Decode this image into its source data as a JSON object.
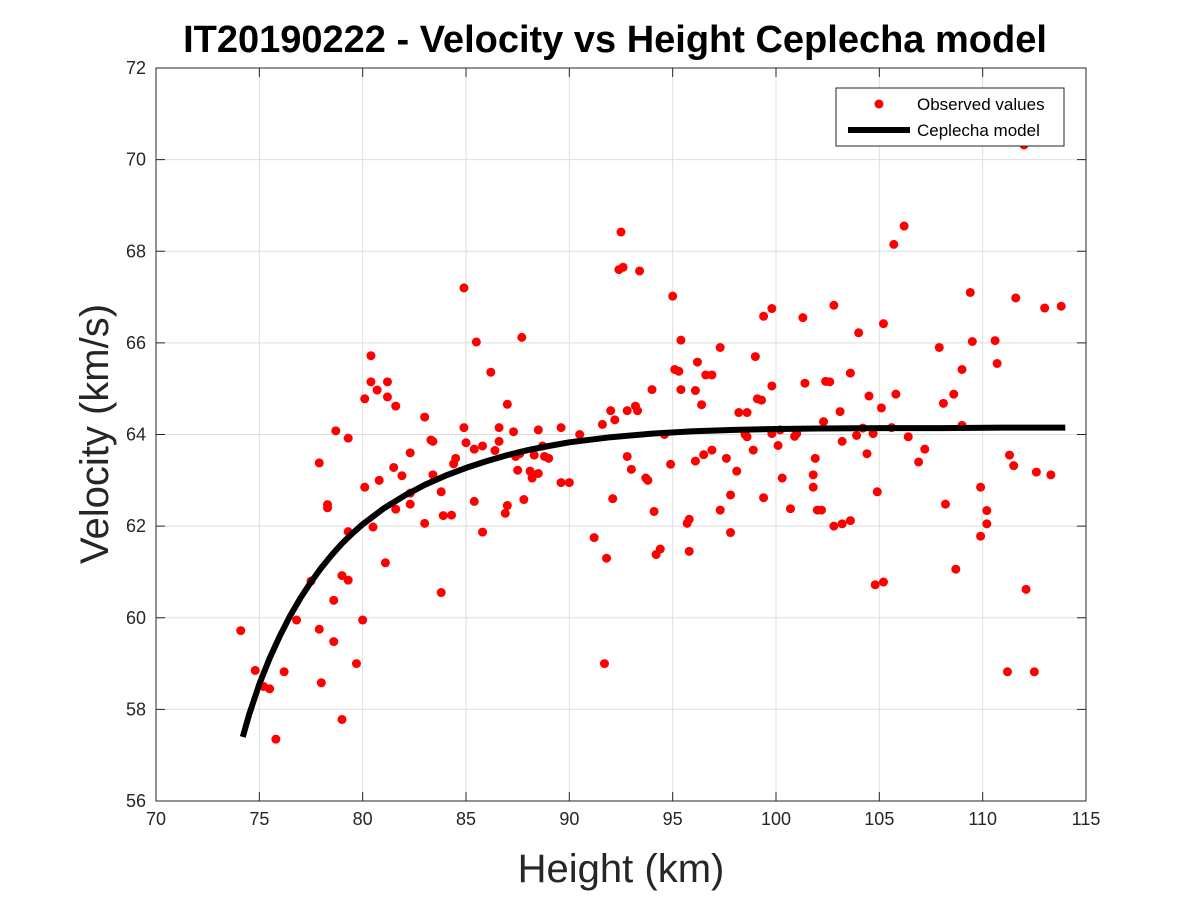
{
  "chart_data": {
    "type": "scatter",
    "title": "IT20190222 - Velocity vs Height Ceplecha model",
    "xlabel": "Height (km)",
    "ylabel": "Velocity (km/s)",
    "xlim": [
      70,
      115
    ],
    "ylim": [
      56,
      72
    ],
    "xticks": [
      "70",
      "75",
      "80",
      "85",
      "90",
      "95",
      "100",
      "105",
      "110",
      "115"
    ],
    "yticks": [
      "56",
      "58",
      "60",
      "62",
      "64",
      "66",
      "68",
      "70",
      "72"
    ],
    "grid": true,
    "legend_position": "top-right",
    "series": [
      {
        "name": "Observed values",
        "style": "markers",
        "color": "#ff0000",
        "points": [
          [
            74.1,
            59.72
          ],
          [
            74.8,
            58.85
          ],
          [
            75.2,
            58.5
          ],
          [
            75.5,
            58.45
          ],
          [
            75.8,
            57.35
          ],
          [
            76.2,
            58.82
          ],
          [
            76.8,
            59.95
          ],
          [
            77.5,
            60.8
          ],
          [
            77.9,
            63.38
          ],
          [
            77.9,
            59.75
          ],
          [
            78.0,
            58.58
          ],
          [
            78.3,
            62.47
          ],
          [
            78.3,
            62.4
          ],
          [
            78.6,
            60.38
          ],
          [
            78.6,
            59.48
          ],
          [
            78.7,
            64.08
          ],
          [
            79.0,
            57.78
          ],
          [
            79.0,
            60.92
          ],
          [
            79.3,
            60.82
          ],
          [
            79.3,
            61.88
          ],
          [
            79.3,
            63.92
          ],
          [
            79.7,
            59.0
          ],
          [
            80.0,
            59.95
          ],
          [
            80.1,
            62.85
          ],
          [
            80.1,
            64.78
          ],
          [
            80.4,
            65.72
          ],
          [
            80.4,
            65.15
          ],
          [
            80.5,
            61.98
          ],
          [
            80.7,
            64.97
          ],
          [
            80.8,
            63.0
          ],
          [
            81.1,
            61.2
          ],
          [
            81.2,
            64.82
          ],
          [
            81.2,
            65.15
          ],
          [
            81.5,
            63.28
          ],
          [
            81.6,
            64.62
          ],
          [
            81.6,
            62.37
          ],
          [
            81.9,
            63.1
          ],
          [
            82.3,
            62.72
          ],
          [
            82.3,
            62.48
          ],
          [
            82.3,
            63.6
          ],
          [
            83.0,
            62.06
          ],
          [
            83.0,
            64.38
          ],
          [
            83.3,
            63.88
          ],
          [
            83.4,
            63.85
          ],
          [
            83.4,
            63.12
          ],
          [
            83.8,
            62.75
          ],
          [
            83.8,
            60.55
          ],
          [
            83.9,
            62.23
          ],
          [
            84.3,
            62.24
          ],
          [
            84.4,
            63.36
          ],
          [
            84.5,
            63.48
          ],
          [
            84.9,
            67.2
          ],
          [
            84.9,
            64.15
          ],
          [
            85.0,
            63.82
          ],
          [
            85.4,
            62.54
          ],
          [
            85.4,
            63.68
          ],
          [
            85.5,
            66.02
          ],
          [
            85.8,
            63.75
          ],
          [
            85.8,
            61.87
          ],
          [
            86.2,
            65.36
          ],
          [
            86.4,
            63.65
          ],
          [
            86.6,
            63.85
          ],
          [
            86.6,
            64.15
          ],
          [
            86.9,
            62.28
          ],
          [
            87.0,
            62.45
          ],
          [
            87.0,
            64.66
          ],
          [
            87.3,
            64.06
          ],
          [
            87.4,
            63.52
          ],
          [
            87.5,
            63.22
          ],
          [
            87.6,
            63.58
          ],
          [
            87.7,
            66.12
          ],
          [
            87.8,
            62.58
          ],
          [
            88.1,
            63.2
          ],
          [
            88.2,
            63.05
          ],
          [
            88.3,
            63.55
          ],
          [
            88.5,
            64.1
          ],
          [
            88.5,
            63.15
          ],
          [
            88.7,
            63.75
          ],
          [
            88.8,
            63.52
          ],
          [
            89.0,
            63.48
          ],
          [
            89.6,
            62.95
          ],
          [
            89.6,
            64.15
          ],
          [
            90.0,
            62.95
          ],
          [
            90.5,
            64.0
          ],
          [
            91.2,
            61.75
          ],
          [
            91.6,
            64.22
          ],
          [
            91.7,
            59.0
          ],
          [
            91.8,
            61.3
          ],
          [
            92.0,
            64.52
          ],
          [
            92.1,
            62.6
          ],
          [
            92.2,
            64.32
          ],
          [
            92.4,
            67.6
          ],
          [
            92.5,
            68.42
          ],
          [
            92.6,
            67.65
          ],
          [
            92.8,
            63.52
          ],
          [
            92.8,
            64.52
          ],
          [
            93.0,
            63.24
          ],
          [
            93.2,
            64.62
          ],
          [
            93.3,
            64.52
          ],
          [
            93.4,
            67.57
          ],
          [
            93.7,
            63.05
          ],
          [
            93.8,
            63.0
          ],
          [
            94.0,
            64.98
          ],
          [
            94.1,
            62.32
          ],
          [
            94.2,
            61.38
          ],
          [
            94.4,
            61.5
          ],
          [
            94.6,
            64.0
          ],
          [
            94.9,
            63.35
          ],
          [
            95.0,
            67.02
          ],
          [
            95.1,
            65.42
          ],
          [
            95.3,
            65.38
          ],
          [
            95.4,
            66.06
          ],
          [
            95.4,
            64.98
          ],
          [
            95.7,
            62.06
          ],
          [
            95.8,
            62.15
          ],
          [
            95.8,
            61.45
          ],
          [
            96.1,
            64.96
          ],
          [
            96.1,
            63.42
          ],
          [
            96.2,
            65.58
          ],
          [
            96.4,
            64.65
          ],
          [
            96.5,
            63.56
          ],
          [
            96.6,
            65.3
          ],
          [
            96.9,
            63.66
          ],
          [
            96.9,
            65.3
          ],
          [
            97.3,
            65.9
          ],
          [
            97.3,
            62.35
          ],
          [
            97.6,
            63.48
          ],
          [
            97.8,
            62.68
          ],
          [
            97.8,
            61.86
          ],
          [
            98.1,
            63.2
          ],
          [
            98.2,
            64.48
          ],
          [
            98.5,
            64.0
          ],
          [
            98.6,
            64.48
          ],
          [
            98.6,
            63.95
          ],
          [
            98.9,
            63.66
          ],
          [
            99.0,
            65.7
          ],
          [
            99.1,
            64.78
          ],
          [
            99.3,
            64.75
          ],
          [
            99.4,
            62.62
          ],
          [
            99.4,
            66.58
          ],
          [
            99.8,
            65.06
          ],
          [
            99.8,
            66.75
          ],
          [
            99.8,
            64.02
          ],
          [
            100.2,
            64.1
          ],
          [
            100.1,
            63.76
          ],
          [
            100.3,
            63.05
          ],
          [
            100.7,
            62.38
          ],
          [
            100.9,
            63.96
          ],
          [
            101.0,
            64.02
          ],
          [
            101.3,
            66.55
          ],
          [
            101.4,
            65.12
          ],
          [
            101.8,
            62.85
          ],
          [
            101.8,
            63.12
          ],
          [
            101.9,
            63.48
          ],
          [
            102.0,
            62.35
          ],
          [
            102.2,
            62.35
          ],
          [
            102.3,
            64.28
          ],
          [
            102.4,
            65.16
          ],
          [
            102.6,
            65.15
          ],
          [
            102.8,
            66.82
          ],
          [
            102.8,
            62.0
          ],
          [
            103.1,
            64.5
          ],
          [
            103.2,
            62.05
          ],
          [
            103.2,
            63.85
          ],
          [
            103.6,
            65.34
          ],
          [
            103.6,
            62.12
          ],
          [
            103.9,
            63.98
          ],
          [
            104.0,
            66.22
          ],
          [
            104.2,
            64.14
          ],
          [
            104.4,
            63.58
          ],
          [
            104.5,
            64.84
          ],
          [
            104.7,
            64.02
          ],
          [
            104.8,
            60.72
          ],
          [
            104.9,
            62.75
          ],
          [
            105.1,
            64.58
          ],
          [
            105.2,
            60.78
          ],
          [
            105.2,
            66.42
          ],
          [
            105.6,
            64.15
          ],
          [
            105.7,
            68.15
          ],
          [
            105.8,
            64.88
          ],
          [
            106.2,
            68.55
          ],
          [
            106.4,
            63.95
          ],
          [
            106.9,
            63.4
          ],
          [
            107.2,
            63.68
          ],
          [
            107.9,
            65.9
          ],
          [
            108.1,
            64.68
          ],
          [
            108.2,
            62.48
          ],
          [
            108.6,
            64.88
          ],
          [
            108.7,
            61.06
          ],
          [
            109.0,
            64.2
          ],
          [
            109.0,
            65.42
          ],
          [
            109.4,
            67.1
          ],
          [
            109.5,
            66.03
          ],
          [
            109.9,
            62.85
          ],
          [
            109.9,
            61.78
          ],
          [
            110.2,
            62.34
          ],
          [
            110.2,
            62.05
          ],
          [
            110.6,
            66.05
          ],
          [
            110.7,
            65.55
          ],
          [
            111.2,
            58.82
          ],
          [
            111.3,
            63.55
          ],
          [
            111.5,
            63.32
          ],
          [
            111.6,
            66.98
          ],
          [
            112.0,
            70.32
          ],
          [
            112.1,
            60.62
          ],
          [
            112.5,
            58.82
          ],
          [
            112.6,
            63.18
          ],
          [
            113.0,
            66.76
          ],
          [
            113.3,
            63.12
          ],
          [
            113.8,
            66.8
          ]
        ]
      },
      {
        "name": "Ceplecha model",
        "style": "line",
        "color": "#000000",
        "x": [
          74.2,
          74.5,
          75,
          75.5,
          76,
          76.5,
          77,
          77.5,
          78,
          78.5,
          79,
          79.5,
          80,
          81,
          82,
          83,
          84,
          85,
          86,
          87,
          88,
          89,
          90,
          92,
          94,
          96,
          98,
          100,
          102,
          105,
          108,
          111,
          114
        ],
        "y": [
          57.4,
          57.88,
          58.55,
          59.12,
          59.61,
          60.05,
          60.44,
          60.78,
          61.09,
          61.37,
          61.62,
          61.84,
          62.04,
          62.38,
          62.66,
          62.9,
          63.1,
          63.27,
          63.42,
          63.55,
          63.66,
          63.75,
          63.83,
          63.94,
          64.02,
          64.07,
          64.1,
          64.12,
          64.13,
          64.14,
          64.14,
          64.15,
          64.15
        ]
      }
    ]
  }
}
